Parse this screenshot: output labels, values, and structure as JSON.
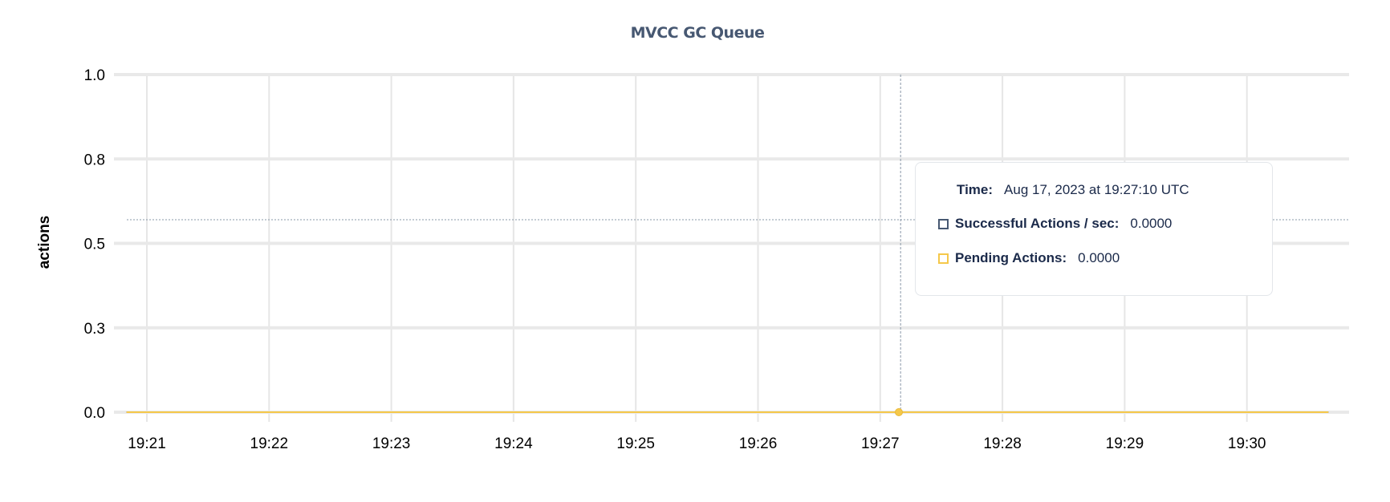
{
  "chart_data": {
    "type": "line",
    "title": "MVCC GC Queue",
    "ylabel": "actions",
    "xlabel": "",
    "ylim": [
      0,
      1
    ],
    "y_ticks": [
      0,
      0.25,
      0.5,
      0.75,
      1.0
    ],
    "y_tick_labels": [
      "0.0",
      "0.3",
      "0.5",
      "0.8",
      "1.0"
    ],
    "x_tick_labels": [
      "19:21",
      "19:22",
      "19:23",
      "19:24",
      "19:25",
      "19:26",
      "19:27",
      "19:28",
      "19:29",
      "19:30"
    ],
    "x_range": [
      "19:20:50",
      "19:30:40"
    ],
    "grid": true,
    "series": [
      {
        "name": "Successful Actions / sec",
        "color": "#475872",
        "x": [
          "19:20:50",
          "19:30:40"
        ],
        "values": [
          0,
          0
        ]
      },
      {
        "name": "Pending Actions",
        "color": "#f5c84a",
        "x": [
          "19:20:50",
          "19:30:40"
        ],
        "values": [
          0,
          0
        ]
      }
    ],
    "hover": {
      "time": "19:27:10",
      "value": 0.57
    }
  },
  "tooltip": {
    "time_label": "Time:",
    "time_value": "Aug 17, 2023 at 19:27:10 UTC",
    "rows": [
      {
        "label": "Successful Actions / sec:",
        "value": "0.0000",
        "color": "#475872"
      },
      {
        "label": "Pending Actions:",
        "value": "0.0000",
        "color": "#f5c84a"
      }
    ]
  }
}
